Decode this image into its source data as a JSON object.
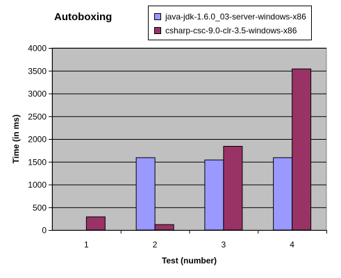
{
  "chart_data": {
    "type": "bar",
    "title": "Autoboxing",
    "xlabel": "Test (number)",
    "ylabel": "Time (in ms)",
    "categories": [
      "1",
      "2",
      "3",
      "4"
    ],
    "ylim": [
      0,
      4000
    ],
    "yticks": [
      0,
      500,
      1000,
      1500,
      2000,
      2500,
      3000,
      3500,
      4000
    ],
    "grid": true,
    "legend_position": "top-right",
    "plot_background": "#c0c0c0",
    "series": [
      {
        "name": "java-jdk-1.6.0_03-server-windows-x86",
        "color": "#9999ff",
        "values": [
          0,
          1590,
          1540,
          1590
        ]
      },
      {
        "name": "csharp-csc-9.0-clr-3.5-windows-x86",
        "color": "#993366",
        "values": [
          290,
          120,
          1840,
          3540
        ]
      }
    ]
  }
}
